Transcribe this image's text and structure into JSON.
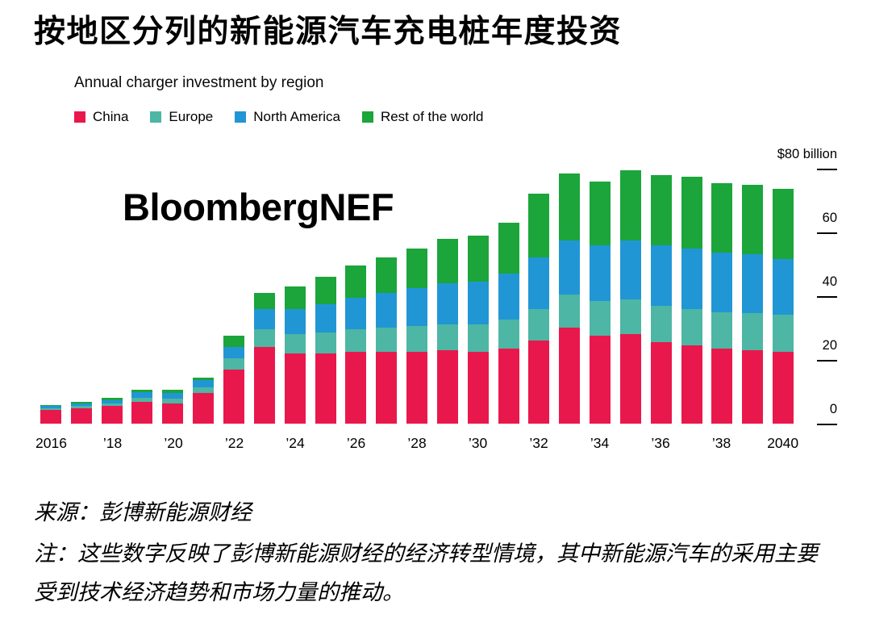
{
  "title": "按地区分列的新能源汽车充电桩年度投资",
  "subtitle": "Annual charger investment by region",
  "watermark": "BloombergNEF",
  "legend": {
    "items": [
      {
        "label": "China",
        "color": "#e9184c"
      },
      {
        "label": "Europe",
        "color": "#4db6a4"
      },
      {
        "label": "North America",
        "color": "#2196d5"
      },
      {
        "label": "Rest of the world",
        "color": "#1ba53a"
      }
    ]
  },
  "axis": {
    "y_top_label": "$80 billion",
    "y_ticks": [
      {
        "value": 0,
        "label": "0"
      },
      {
        "value": 20,
        "label": "20"
      },
      {
        "value": 40,
        "label": "40"
      },
      {
        "value": 60,
        "label": "60"
      },
      {
        "value": 80,
        "label": "$80 billion"
      }
    ],
    "x_tick_labels": [
      "2016",
      "’18",
      "’20",
      "’22",
      "’24",
      "’26",
      "’28",
      "’30",
      "’32",
      "’34",
      "’36",
      "’38",
      "2040"
    ]
  },
  "footer": {
    "source": "来源：彭博新能源财经",
    "note": "注：这些数字反映了彭博新能源财经的经济转型情境，其中新能源汽车的采用主要受到技术经济趋势和市场力量的推动。"
  },
  "chart_data": {
    "type": "bar",
    "stacked": true,
    "title": "Annual charger investment by region",
    "unit": "$ billion",
    "ylim": [
      0,
      80
    ],
    "grid": false,
    "legend_position": "top",
    "x": [
      2016,
      2017,
      2018,
      2019,
      2020,
      2021,
      2022,
      2023,
      2024,
      2025,
      2026,
      2027,
      2028,
      2029,
      2030,
      2031,
      2032,
      2033,
      2034,
      2035,
      2036,
      2037,
      2038,
      2039,
      2040
    ],
    "series": [
      {
        "name": "China",
        "color": "#e9184c",
        "values": [
          4.2,
          4.8,
          5.5,
          6.8,
          6.2,
          9.5,
          17,
          24,
          22,
          22,
          22.5,
          22.5,
          22.5,
          23,
          22.5,
          23.5,
          26,
          30,
          27.5,
          28,
          25.5,
          24.5,
          23.5,
          23,
          22.5
        ]
      },
      {
        "name": "Europe",
        "color": "#4db6a4",
        "values": [
          0.5,
          0.6,
          0.8,
          1.2,
          1.6,
          1.8,
          3.5,
          5.5,
          6,
          6.5,
          7,
          7.5,
          8,
          8,
          8.5,
          9,
          10,
          10.5,
          11,
          11,
          11.5,
          11.5,
          11.5,
          11.5,
          11.5
        ]
      },
      {
        "name": "North America",
        "color": "#2196d5",
        "values": [
          0.7,
          0.9,
          1.1,
          1.7,
          1.8,
          2.2,
          3.5,
          6.5,
          8,
          9,
          10,
          11,
          12,
          13,
          13.5,
          14.5,
          16,
          17,
          17.5,
          18.5,
          19,
          19,
          18.5,
          18.5,
          17.5
        ]
      },
      {
        "name": "Rest of the world",
        "color": "#1ba53a",
        "values": [
          0.4,
          0.5,
          0.6,
          0.8,
          0.9,
          1.0,
          3.5,
          5,
          7,
          8.5,
          10,
          11,
          12.5,
          14,
          14.5,
          16,
          20,
          21,
          20,
          22,
          22,
          22.5,
          22,
          22,
          22
        ]
      }
    ]
  }
}
